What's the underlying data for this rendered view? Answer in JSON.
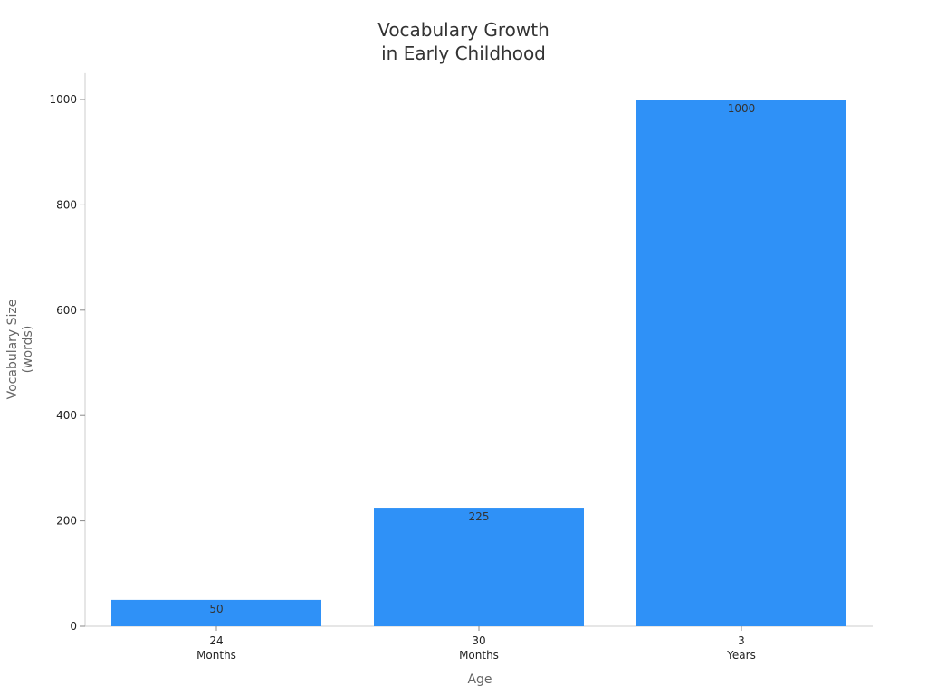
{
  "chart_data": {
    "type": "bar",
    "title_lines": [
      "Vocabulary Growth",
      "in Early Childhood"
    ],
    "xlabel": "Age",
    "ylabel_lines": [
      "Vocabulary Size",
      "(words)"
    ],
    "categories": [
      [
        "24",
        "Months"
      ],
      [
        "30",
        "Months"
      ],
      [
        "3",
        "Years"
      ]
    ],
    "values": [
      50,
      225,
      1000
    ],
    "data_labels": [
      "50",
      "225",
      "1000"
    ],
    "ylim": [
      0,
      1050
    ],
    "yticks": [
      0,
      200,
      400,
      600,
      800,
      1000
    ],
    "bar_color": "#2f91f7",
    "grid": false,
    "legend": "none"
  }
}
